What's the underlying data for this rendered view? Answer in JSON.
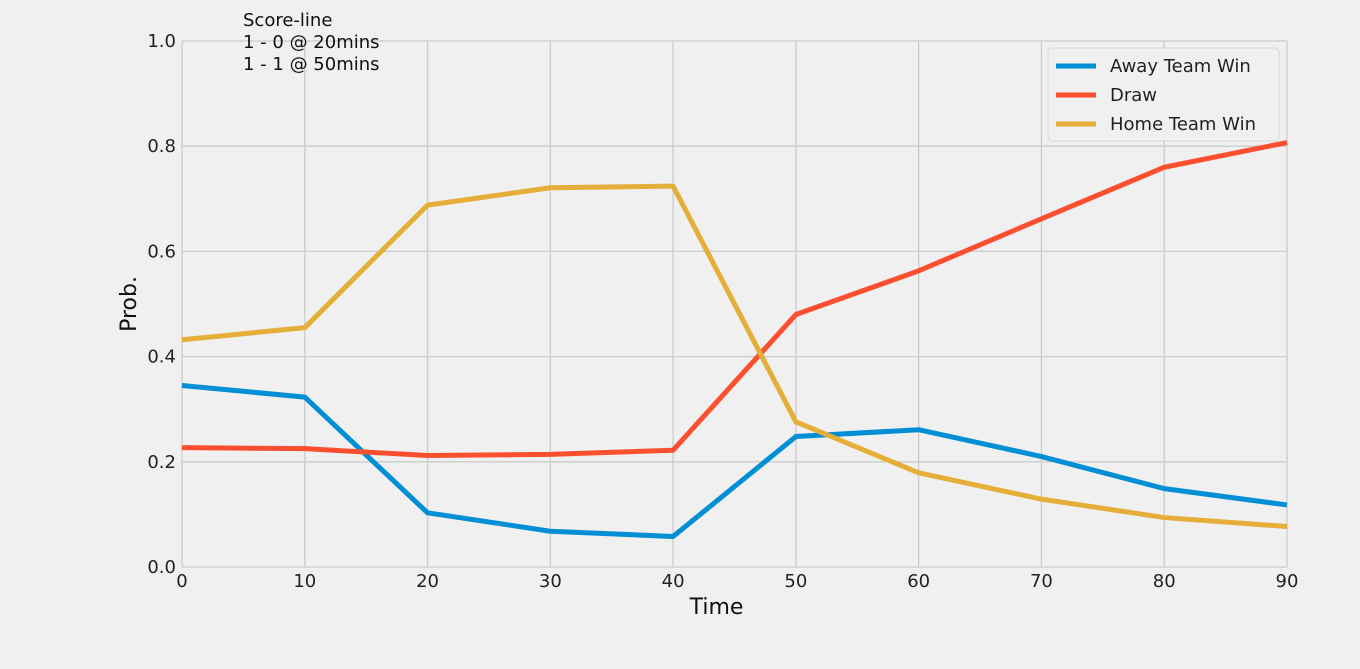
{
  "chart_data": {
    "type": "line",
    "xlabel": "Time",
    "ylabel": "Prob.",
    "xlim": [
      0,
      90
    ],
    "ylim": [
      0,
      1.0
    ],
    "x": [
      0,
      10,
      20,
      30,
      40,
      50,
      60,
      70,
      80,
      90
    ],
    "x_ticks": [
      "0",
      "10",
      "20",
      "30",
      "40",
      "50",
      "60",
      "70",
      "80",
      "90"
    ],
    "y_ticks": [
      "0.0",
      "0.2",
      "0.4",
      "0.6",
      "0.8",
      "1.0"
    ],
    "grid": true,
    "legend_position": "top-right",
    "series": [
      {
        "name": "Away Team Win",
        "color": "#008fd5",
        "values": [
          0.345,
          0.323,
          0.103,
          0.068,
          0.058,
          0.248,
          0.261,
          0.21,
          0.149,
          0.118
        ]
      },
      {
        "name": "Draw",
        "color": "#fc4f30",
        "values": [
          0.227,
          0.225,
          0.212,
          0.214,
          0.222,
          0.48,
          0.563,
          0.662,
          0.76,
          0.807
        ]
      },
      {
        "name": "Home Team Win",
        "color": "#e5ae38",
        "values": [
          0.432,
          0.455,
          0.688,
          0.721,
          0.724,
          0.276,
          0.179,
          0.129,
          0.094,
          0.077
        ]
      }
    ],
    "annotation": [
      "Score-line",
      "1 - 0 @ 20mins",
      "1 - 1 @ 50mins"
    ]
  }
}
